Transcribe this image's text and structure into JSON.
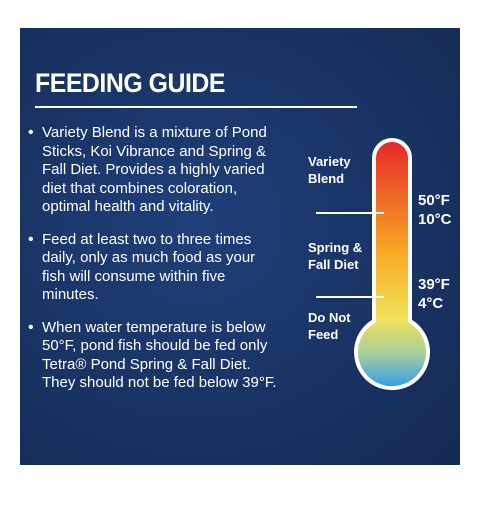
{
  "title": "FEEDING GUIDE",
  "bullets": [
    {
      "text": "Variety Blend is a mixture of Pond\nSticks, Koi Vibrance and Spring &\nFall Diet. Provides a highly varied\ndiet that combines coloration,\noptimal health and vitality."
    },
    {
      "text": "Feed at least two to three times\ndaily, only as much food as your\nfish will consume within five\nminutes."
    },
    {
      "text": "When water temperature is below\n50°F, pond fish should be fed only\nTetra® Pond Spring & Fall Diet.\nThey should not be fed below 39°F."
    }
  ],
  "thermometer": {
    "zones": [
      {
        "label": "Variety\nBlend"
      },
      {
        "label": "Spring &\nFall Diet"
      },
      {
        "label": "Do Not\nFeed"
      }
    ],
    "markers": [
      {
        "temp": "50°F\n10°C"
      },
      {
        "temp": "39°F\n4°C"
      }
    ],
    "colors": {
      "top": "#e8252a",
      "middle": "#f7a824",
      "lower": "#f2e25a",
      "bulb": "#2e9bf0",
      "outline": "#ffffff"
    }
  }
}
